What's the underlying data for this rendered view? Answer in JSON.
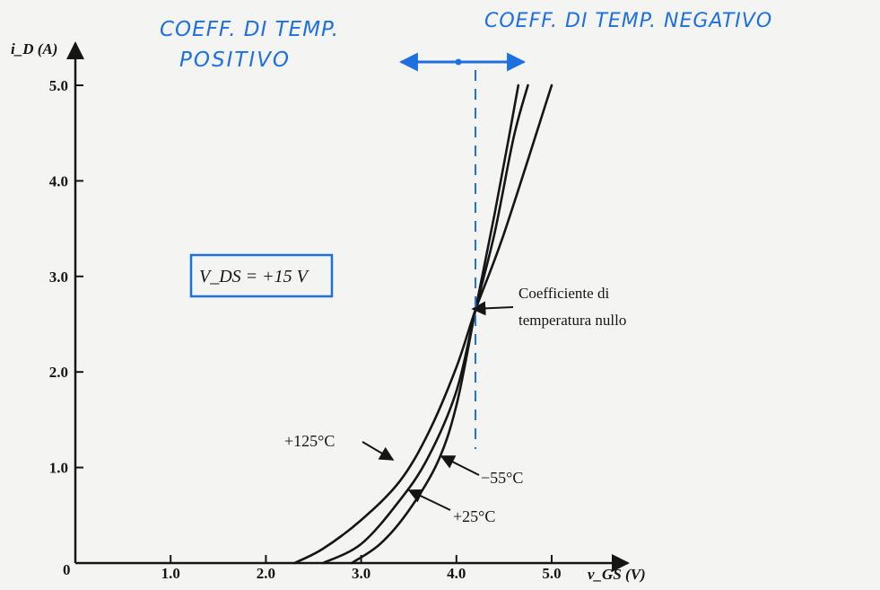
{
  "chart_data": {
    "type": "line",
    "xlabel": "v_GS (V)",
    "ylabel": "i_D (A)",
    "xlim": [
      0,
      5.7
    ],
    "ylim": [
      0,
      5.0
    ],
    "origin_label": "0",
    "x_ticks": [
      1.0,
      2.0,
      3.0,
      4.0,
      5.0
    ],
    "x_tick_labels": [
      "1.0",
      "2.0",
      "3.0",
      "4.0",
      "5.0"
    ],
    "y_ticks": [
      1.0,
      2.0,
      3.0,
      4.0,
      5.0
    ],
    "y_tick_labels": [
      "1.0",
      "2.0",
      "3.0",
      "4.0",
      "5.0"
    ],
    "grid": false,
    "series": [
      {
        "name": "+125°C",
        "color": "#151515",
        "x": [
          2.3,
          2.6,
          3.0,
          3.4,
          3.7,
          4.0,
          4.2,
          4.5,
          5.0
        ],
        "y": [
          0.0,
          0.15,
          0.45,
          0.85,
          1.35,
          2.05,
          2.65,
          3.45,
          5.0
        ]
      },
      {
        "name": "+25°C",
        "color": "#151515",
        "x": [
          2.6,
          3.0,
          3.4,
          3.7,
          4.0,
          4.2,
          4.4,
          4.6,
          4.75
        ],
        "y": [
          0.0,
          0.2,
          0.65,
          1.1,
          1.8,
          2.65,
          3.45,
          4.45,
          5.0
        ]
      },
      {
        "name": "−55°C",
        "color": "#151515",
        "x": [
          2.9,
          3.2,
          3.5,
          3.8,
          4.0,
          4.2,
          4.4,
          4.55,
          4.65
        ],
        "y": [
          0.0,
          0.2,
          0.55,
          1.05,
          1.65,
          2.65,
          3.65,
          4.45,
          5.0
        ]
      }
    ],
    "annotations": {
      "vds_box": "V_DS = +15 V",
      "zero_tc": [
        "Coefficiente di",
        "temperatura nullo"
      ],
      "zero_tc_point": {
        "x": 4.2,
        "y": 2.65
      }
    },
    "handwritten": {
      "left_line1": "COEFF. DI TEMP.",
      "left_line2": "POSITIVO",
      "right": "COEFF. DI TEMP. NEGATIVO",
      "color": "#1e6fe0",
      "dashed_line_x": 4.2
    }
  }
}
